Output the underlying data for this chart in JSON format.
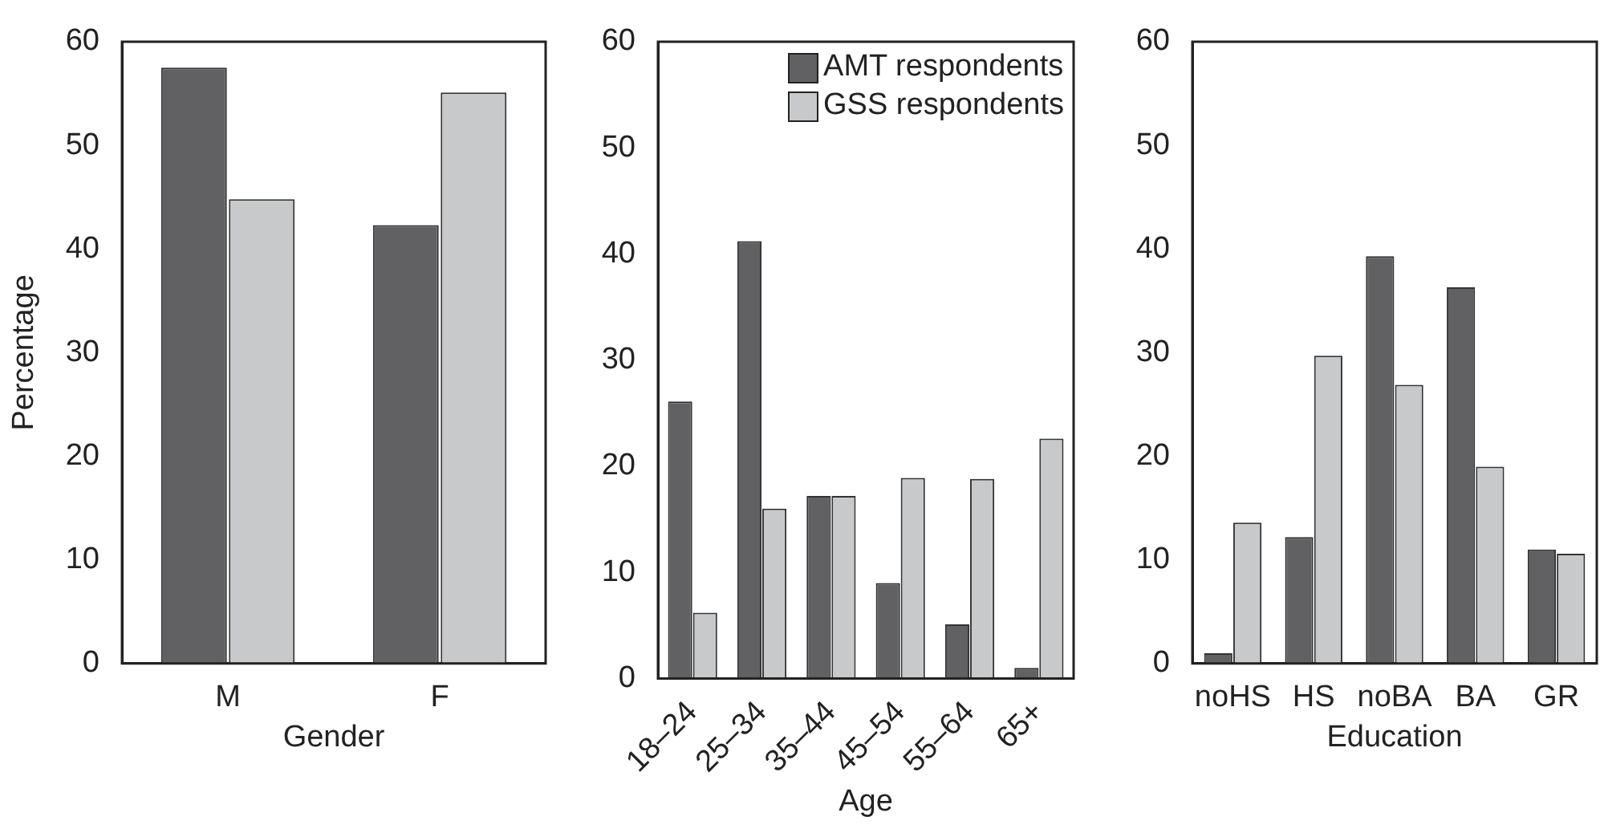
{
  "chart_data": [
    {
      "type": "bar",
      "xlabel": "Gender",
      "ylabel": "Percentage",
      "categories": [
        "M",
        "F"
      ],
      "ylim": [
        0,
        60
      ],
      "yticks": [
        0,
        10,
        20,
        30,
        40,
        50,
        60
      ],
      "series": [
        {
          "color": "#616163",
          "values": [
            57.5,
            42.3
          ]
        },
        {
          "color": "#c8c9cb",
          "values": [
            44.8,
            55.1
          ]
        }
      ]
    },
    {
      "type": "bar",
      "xlabel": "Age",
      "categories": [
        "18–24",
        "25–34",
        "35–44",
        "45–54",
        "55–64",
        "65+"
      ],
      "ylim": [
        0,
        60
      ],
      "yticks": [
        0,
        10,
        20,
        30,
        40,
        50,
        60
      ],
      "legend": "top right",
      "series": [
        {
          "name": "AMT respondents",
          "color": "#616163",
          "values": [
            26.1,
            41.2,
            17.2,
            9.0,
            5.1,
            1.0
          ]
        },
        {
          "name": "GSS respondents",
          "color": "#c8c9cb",
          "values": [
            6.2,
            16.0,
            17.2,
            18.9,
            18.8,
            22.6
          ]
        }
      ]
    },
    {
      "type": "bar",
      "xlabel": "Education",
      "categories": [
        "noHS",
        "HS",
        "noBA",
        "BA",
        "GR"
      ],
      "ylim": [
        0,
        60
      ],
      "yticks": [
        0,
        10,
        20,
        30,
        40,
        50,
        60
      ],
      "series": [
        {
          "color": "#616163",
          "values": [
            1.0,
            12.2,
            39.3,
            36.3,
            11.0
          ]
        },
        {
          "color": "#c8c9cb",
          "values": [
            13.6,
            29.7,
            26.9,
            19.0,
            10.6
          ]
        }
      ]
    }
  ]
}
